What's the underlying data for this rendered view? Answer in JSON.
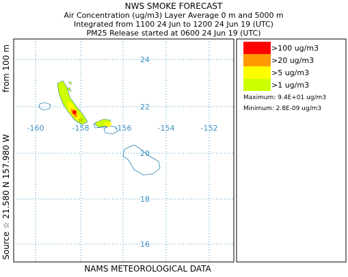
{
  "header": {
    "title": "NWS SMOKE FORECAST",
    "lines": [
      "Air Concentration (ug/m3) Layer Average    0 m and  5000 m",
      "Integrated from 1100 24 Jun to 1200 24 Jun 19 (UTC)",
      "PM25 Release started at 0600 24 Jun 19 (UTC)"
    ]
  },
  "map": {
    "latitude_labels": [
      "24",
      "22",
      "20",
      "18",
      "16"
    ],
    "longitude_labels": [
      "-160",
      "-158",
      "-156",
      "-154",
      "-152"
    ],
    "height_label": "from  100 m",
    "source_label": "Source ☆  21.580 N 157.980 W"
  },
  "legend": {
    "entries": [
      {
        "label": ">100 ug/m3",
        "color": "#ff0000"
      },
      {
        "label": ">20 ug/m3",
        "color": "#ff9900"
      },
      {
        "label": ">5 ug/m3",
        "color": "#ffff00"
      },
      {
        "label": ">1 ug/m3",
        "color": "#ccff00"
      }
    ],
    "maximum": "Maximum: 9.4E+01 ug/m3",
    "minimum": "Minimum: 2.8E-09 ug/m3"
  },
  "footer": "NAMS METEOROLOGICAL DATA"
}
